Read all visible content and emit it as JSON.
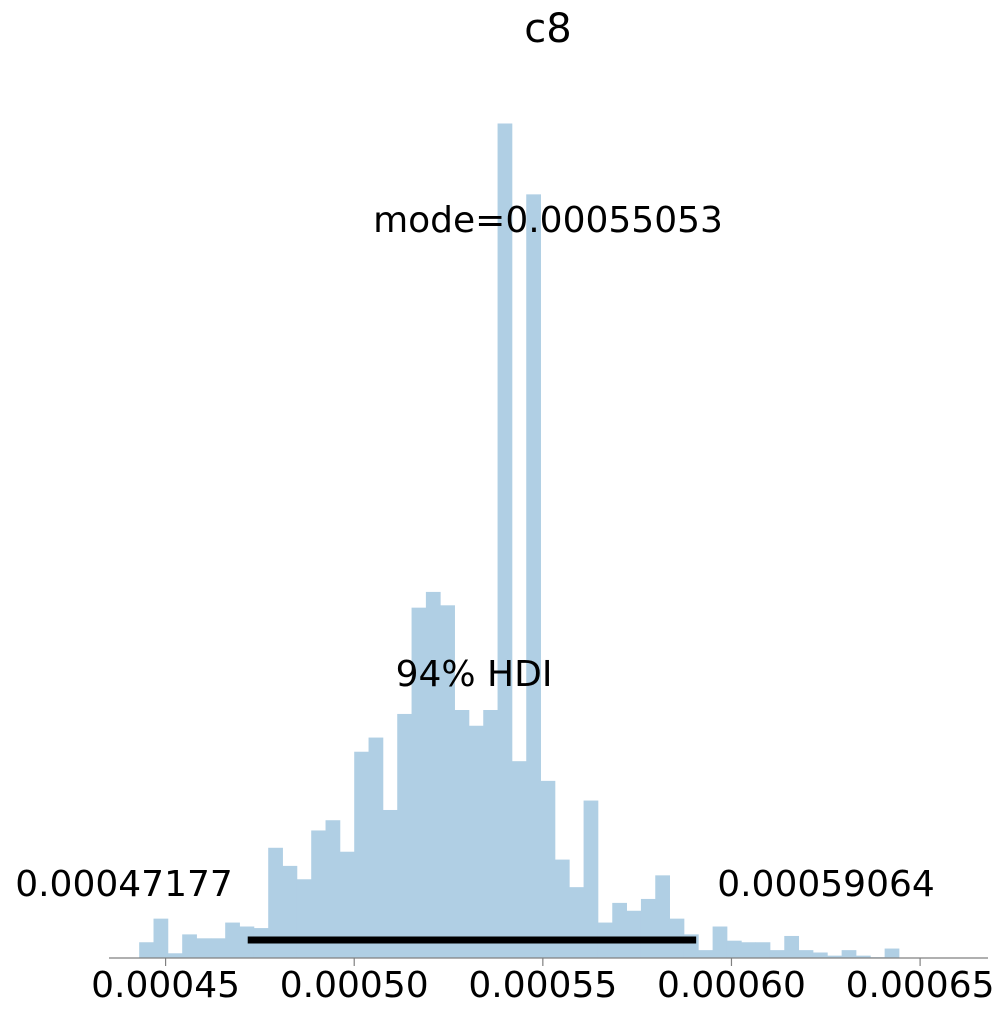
{
  "chart_data": {
    "type": "bar",
    "title": "c8",
    "bar_color": "#b0cfe4",
    "bin_width": 3.8e-06,
    "bin_start": 0.000443,
    "values": [
      2,
      5,
      0.6,
      3,
      2.5,
      2.5,
      4.5,
      4,
      3.8,
      14,
      11.7,
      10,
      16.2,
      17.5,
      13.5,
      26.2,
      28,
      18.8,
      31,
      44.5,
      46.5,
      44.8,
      31.5,
      29.5,
      31.5,
      106,
      25,
      97,
      22.5,
      12.5,
      9,
      20,
      4.5,
      7,
      6,
      7.5,
      10.5,
      5,
      3,
      1,
      4,
      2.2,
      2,
      2,
      1,
      2.8,
      1,
      0.7,
      0.3,
      1,
      0.3,
      0.1,
      1.2
    ],
    "ylim": [
      0,
      110
    ],
    "xlim": [
      0.000435,
      0.000668
    ],
    "xticks": [
      "0.00045",
      "0.00050",
      "0.00055",
      "0.00060",
      "0.00065"
    ],
    "xtick_values": [
      0.00045,
      0.0005,
      0.00055,
      0.0006,
      0.00065
    ],
    "mode_label": "mode=0.00055053",
    "hdi": {
      "label": "94% HDI",
      "low": 0.00047177,
      "high": 0.00059064,
      "low_label": "0.00047177",
      "high_label": "0.00059064",
      "color": "#000000"
    },
    "grid": false
  }
}
